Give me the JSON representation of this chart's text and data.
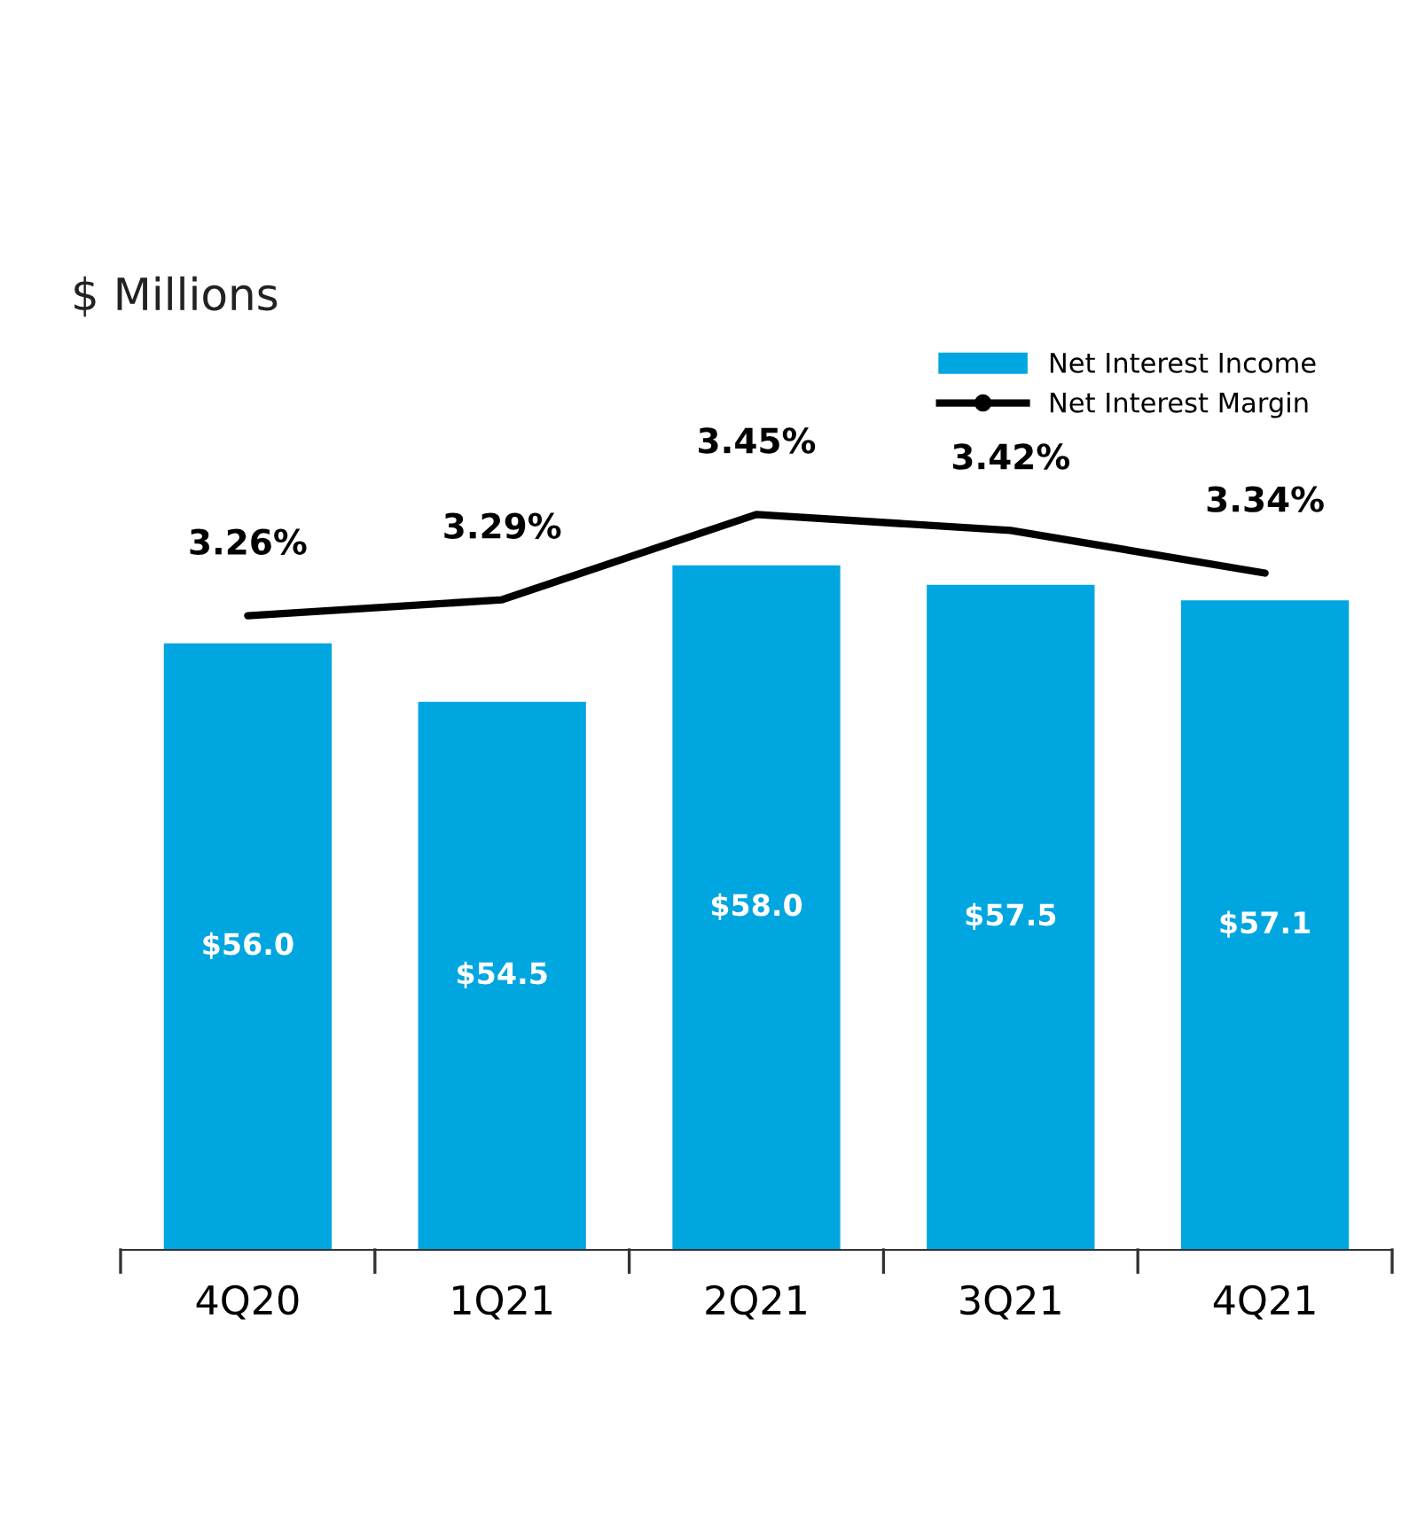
{
  "chart_data": {
    "type": "bar",
    "ylabel": "$ Millions",
    "categories": [
      "4Q20",
      "1Q21",
      "2Q21",
      "3Q21",
      "4Q21"
    ],
    "ylim": [
      40.45,
      63.4
    ],
    "y2lim": [
      2.07,
      3.75
    ],
    "series": [
      {
        "name": "Net Interest Income",
        "color": "#00a6e0",
        "values": [
          56.0,
          54.5,
          58.0,
          57.5,
          57.1
        ],
        "value_labels": [
          "$56.0",
          "$54.5",
          "$58.0",
          "$57.5",
          "$57.1"
        ]
      },
      {
        "name": "Net Interest Margin",
        "type": "line",
        "axis": "y2",
        "color": "#000000",
        "values": [
          3.26,
          3.29,
          3.45,
          3.42,
          3.34
        ],
        "value_labels": [
          "3.26%",
          "3.29%",
          "3.45%",
          "3.42%",
          "3.34%"
        ]
      }
    ],
    "legend": "top right",
    "grid": false
  }
}
